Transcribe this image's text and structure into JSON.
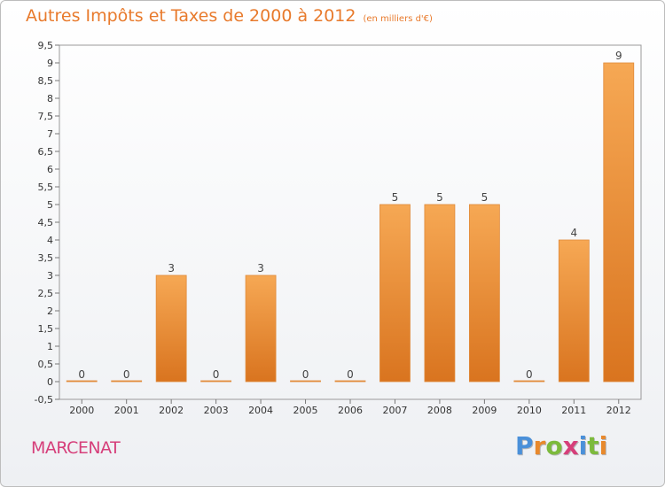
{
  "title": "Autres Impôts et Taxes de 2000 à 2012",
  "unit": "(en milliers d'€)",
  "commune": "MARCENAT",
  "logo": {
    "letters": [
      "P",
      "r",
      "o",
      "x",
      "i",
      "t",
      "i"
    ],
    "colors": [
      "#4a90d9",
      "#e8892c",
      "#7cba3c",
      "#d63f7a",
      "#4a90d9",
      "#7cba3c",
      "#e8892c"
    ]
  },
  "colors": {
    "bar_top": "#f6a854",
    "bar_bottom": "#d9741f",
    "title": "#e87a2c",
    "commune": "#d63f7a"
  },
  "chart_data": {
    "type": "bar",
    "categories": [
      "2000",
      "2001",
      "2002",
      "2003",
      "2004",
      "2005",
      "2006",
      "2007",
      "2008",
      "2009",
      "2010",
      "2011",
      "2012"
    ],
    "values": [
      0,
      0,
      3,
      0,
      3,
      0,
      0,
      5,
      5,
      5,
      0,
      4,
      9
    ],
    "value_labels": [
      "0",
      "0",
      "3",
      "0",
      "3",
      "0",
      "0",
      "5",
      "5",
      "5",
      "0",
      "4",
      "9"
    ],
    "ylim": [
      -0.5,
      9.5
    ],
    "yticks": [
      "-0,5",
      "0",
      "0,5",
      "1",
      "1,5",
      "2",
      "2,5",
      "3",
      "3,5",
      "4",
      "4,5",
      "5",
      "5,5",
      "6",
      "6,5",
      "7",
      "7,5",
      "8",
      "8,5",
      "9",
      "9,5"
    ],
    "ytick_values": [
      -0.5,
      0,
      0.5,
      1,
      1.5,
      2,
      2.5,
      3,
      3.5,
      4,
      4.5,
      5,
      5.5,
      6,
      6.5,
      7,
      7.5,
      8,
      8.5,
      9,
      9.5
    ],
    "grid": false,
    "legend": "none"
  }
}
